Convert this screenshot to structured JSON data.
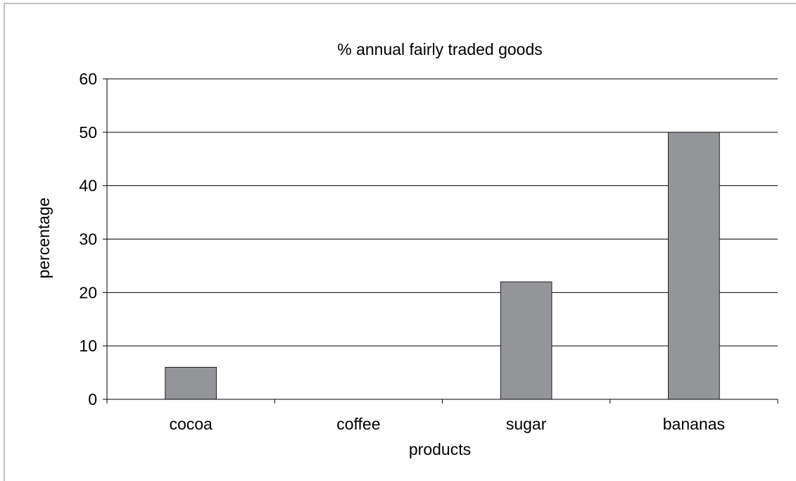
{
  "chart_data": {
    "type": "bar",
    "title": "% annual fairly traded goods",
    "xlabel": "products",
    "ylabel": "percentage",
    "categories": [
      "cocoa",
      "coffee",
      "sugar",
      "bananas"
    ],
    "values": [
      6,
      0,
      22,
      50
    ],
    "ylim": [
      0,
      60
    ],
    "yticks": [
      "0",
      "10",
      "20",
      "30",
      "40",
      "50",
      "60"
    ],
    "grid": true,
    "legend": "none",
    "colors": {
      "bar_fill": "#939598",
      "bar_stroke": "#231f20",
      "grid": "#000000",
      "axis": "#000000",
      "frame": "#808080"
    }
  }
}
